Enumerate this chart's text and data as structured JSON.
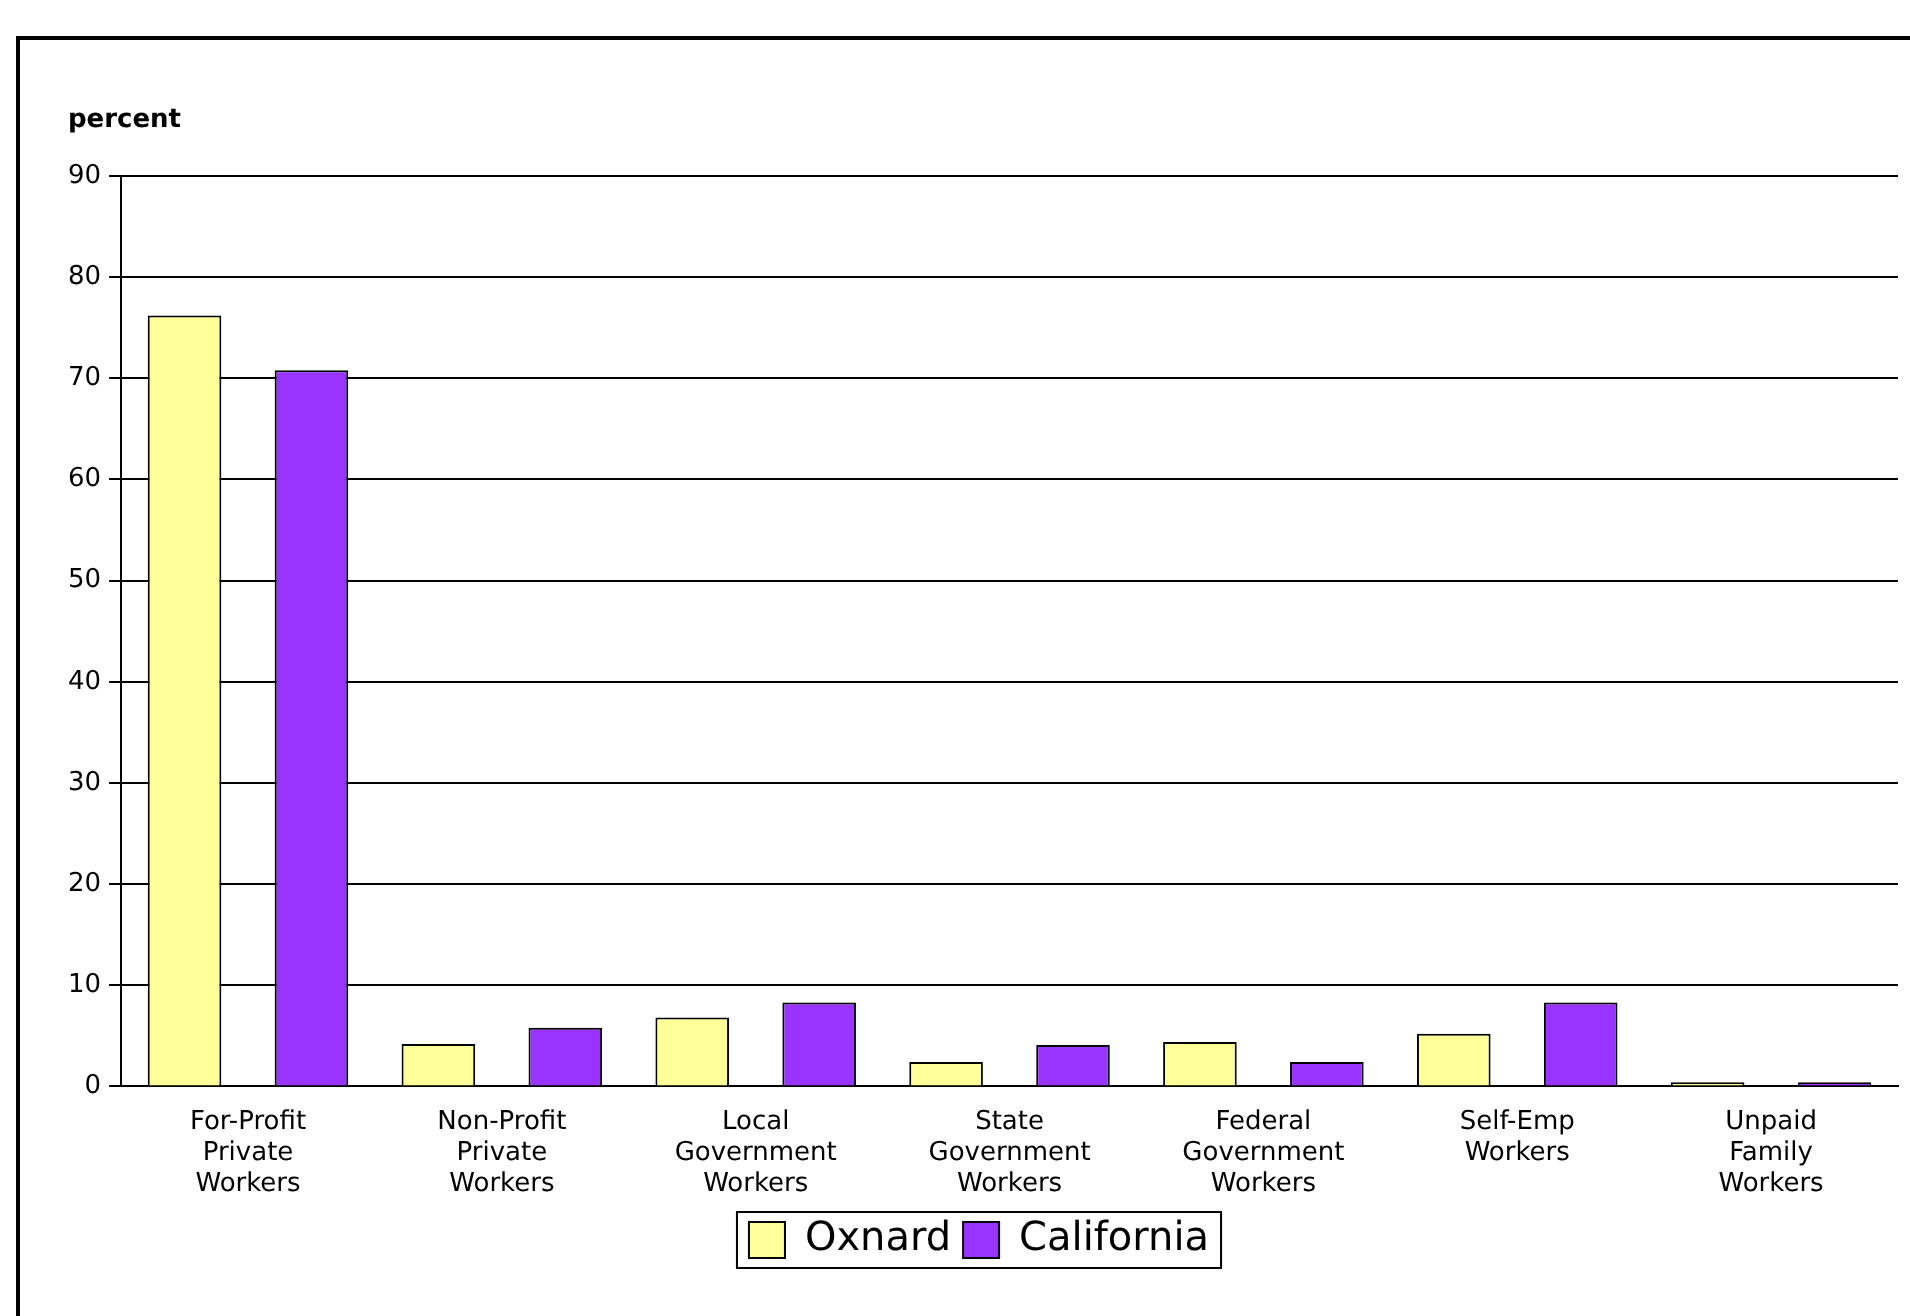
{
  "chart_data": {
    "type": "bar",
    "ylabel": "percent",
    "categories": [
      "For-Profit Private Workers",
      "Non-Profit Private Workers",
      "Local Government Workers",
      "State Government Workers",
      "Federal Government Workers",
      "Self-Emp Workers",
      "Unpaid Family Workers"
    ],
    "series": [
      {
        "name": "Oxnard",
        "color": "#ffff99",
        "values": [
          76.2,
          4.2,
          6.8,
          2.4,
          4.4,
          5.2,
          0.4
        ]
      },
      {
        "name": "California",
        "color": "#9933ff",
        "values": [
          70.8,
          5.8,
          8.3,
          4.1,
          2.4,
          8.3,
          0.4
        ]
      }
    ],
    "ylim": [
      0,
      90
    ],
    "yticks": [
      0,
      10,
      20,
      30,
      40,
      50,
      60,
      70,
      80,
      90
    ],
    "grid": "y",
    "legend": "bottom"
  }
}
